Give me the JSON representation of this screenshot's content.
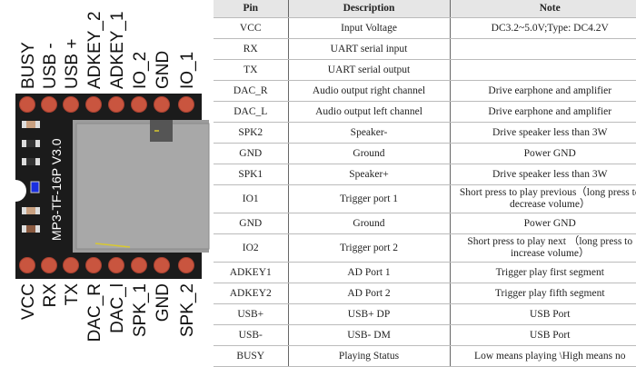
{
  "board": {
    "model_text": "MP3-TF-16P V3.0",
    "top_pins": [
      "BUSY",
      "USB -",
      "USB +",
      "ADKEY_2",
      "ADKEY_1",
      "IO_2",
      "GND",
      "IO_1"
    ],
    "bottom_pins": [
      "VCC",
      "RX",
      "TX",
      "DAC_R",
      "DAC_l",
      "SPK_1",
      "GND",
      "SPK_2"
    ],
    "colors": {
      "pcb": "#1b1b1b",
      "pad": "#c9553f",
      "sd_slot": "#9c9c9c",
      "led": "#1a2fe0"
    }
  },
  "table": {
    "headers": [
      "Pin",
      "Description",
      "Note"
    ],
    "rows": [
      [
        "VCC",
        "Input Voltage",
        "DC3.2~5.0V;Type: DC4.2V"
      ],
      [
        "RX",
        "UART serial input",
        ""
      ],
      [
        "TX",
        "UART serial output",
        ""
      ],
      [
        "DAC_R",
        "Audio output right channel",
        "Drive earphone and amplifier"
      ],
      [
        "DAC_L",
        "Audio output left channel",
        "Drive earphone and amplifier"
      ],
      [
        "SPK2",
        "Speaker-",
        "Drive speaker less than 3W"
      ],
      [
        "GND",
        "Ground",
        "Power GND"
      ],
      [
        "SPK1",
        "Speaker+",
        "Drive speaker less than 3W"
      ],
      [
        "IO1",
        "Trigger port 1",
        "Short press to play previous（long press to decrease volume）"
      ],
      [
        "GND",
        "Ground",
        "Power GND"
      ],
      [
        "IO2",
        "Trigger port 2",
        "Short press to play next （long press to increase volume）"
      ],
      [
        "ADKEY1",
        "AD Port 1",
        "Trigger play first segment"
      ],
      [
        "ADKEY2",
        "AD Port 2",
        "Trigger play fifth segment"
      ],
      [
        "USB+",
        "USB+ DP",
        "USB Port"
      ],
      [
        "USB-",
        "USB- DM",
        "USB Port"
      ],
      [
        "BUSY",
        "Playing Status",
        "Low means playing \\High means no"
      ]
    ]
  }
}
